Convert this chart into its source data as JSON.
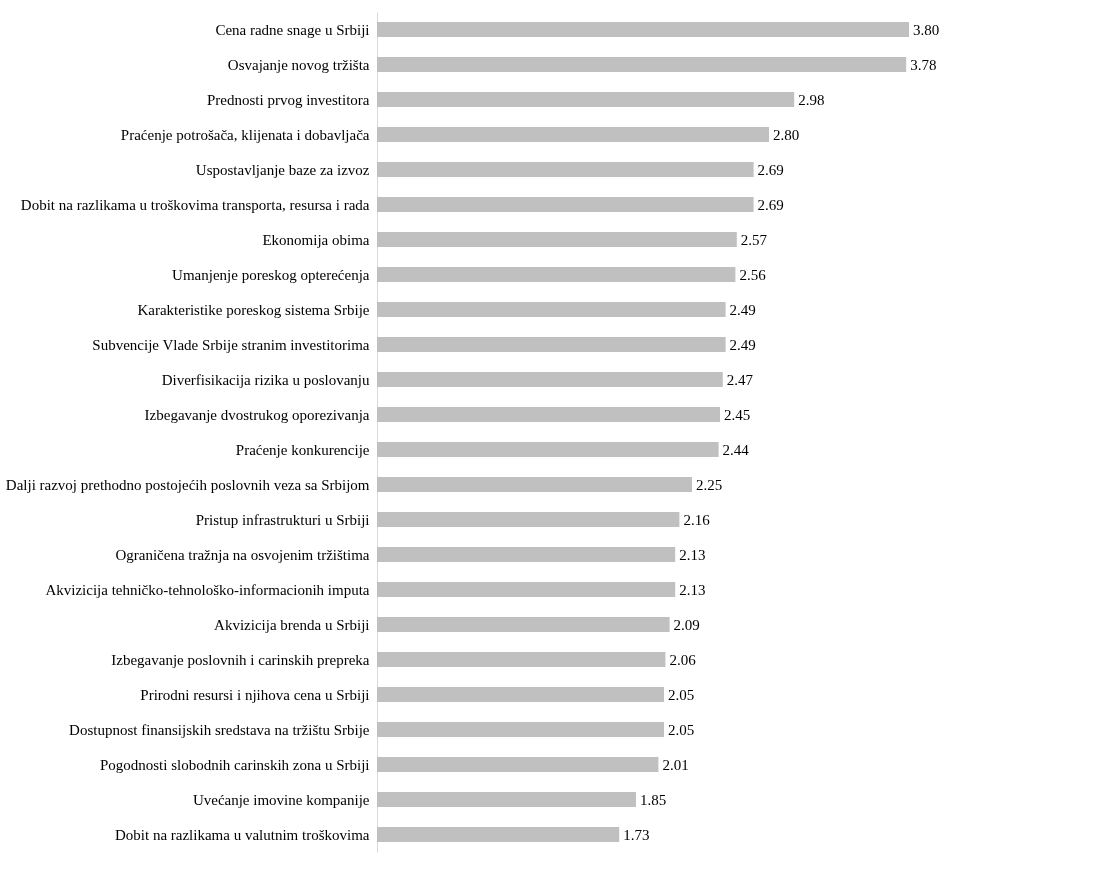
{
  "chart_data": {
    "type": "bar",
    "orientation": "horizontal",
    "tick_labels": "y",
    "color": "#c0c0c0",
    "value_labels": [
      "3.80",
      "3.78",
      "2.98",
      "2.80",
      "2.69",
      "2.69",
      "2.57",
      "2.56",
      "2.49",
      "2.49",
      "2.47",
      "2.45",
      "2.44",
      "2.25",
      "2.16",
      "2.13",
      "2.13",
      "2.09",
      "2.06",
      "2.05",
      "2.05",
      "2.01",
      "1.85",
      "1.73"
    ],
    "categories": [
      "Cena radne snage u Srbiji",
      "Osvajanje novog tržišta",
      "Prednosti prvog investitora",
      "Praćenje potrošača, klijenata i dobavljača",
      "Uspostavljanje baze za izvoz",
      "Dobit na razlikama u troškovima transporta, resursa i rada",
      "Ekonomija obima",
      "Umanjenje poreskog opterećenja",
      "Karakteristike poreskog sistema Srbije",
      "Subvencije Vlade Srbije stranim investitorima",
      "Diverfisikacija rizika u poslovanju",
      "Izbegavanje dvostrukog oporezivanja",
      "Praćenje konkurencije",
      "Dalji razvoj prethodno postojećih poslovnih veza sa Srbijom",
      "Pristup infrastrukturi u Srbiji",
      "Ograničena tražnja na osvojenim tržištima",
      "Akvizicija tehničko-tehnološko-informacionih imputa",
      "Akvizicija brenda u Srbiji",
      "Izbegavanje poslovnih i carinskih prepreka",
      "Prirodni resursi i njihova cena u Srbiji",
      "Dostupnost finansijskih sredstava na tržištu Srbije",
      "Pogodnosti slobodnih carinskih zona u Srbiji",
      "Uvećanje imovine kompanije",
      "Dobit na razlikama u valutnim troškovima"
    ],
    "values": [
      3.8,
      3.78,
      2.98,
      2.8,
      2.69,
      2.69,
      2.57,
      2.56,
      2.49,
      2.49,
      2.47,
      2.45,
      2.44,
      2.25,
      2.16,
      2.13,
      2.13,
      2.09,
      2.06,
      2.05,
      2.05,
      2.01,
      1.85,
      1.73
    ]
  }
}
